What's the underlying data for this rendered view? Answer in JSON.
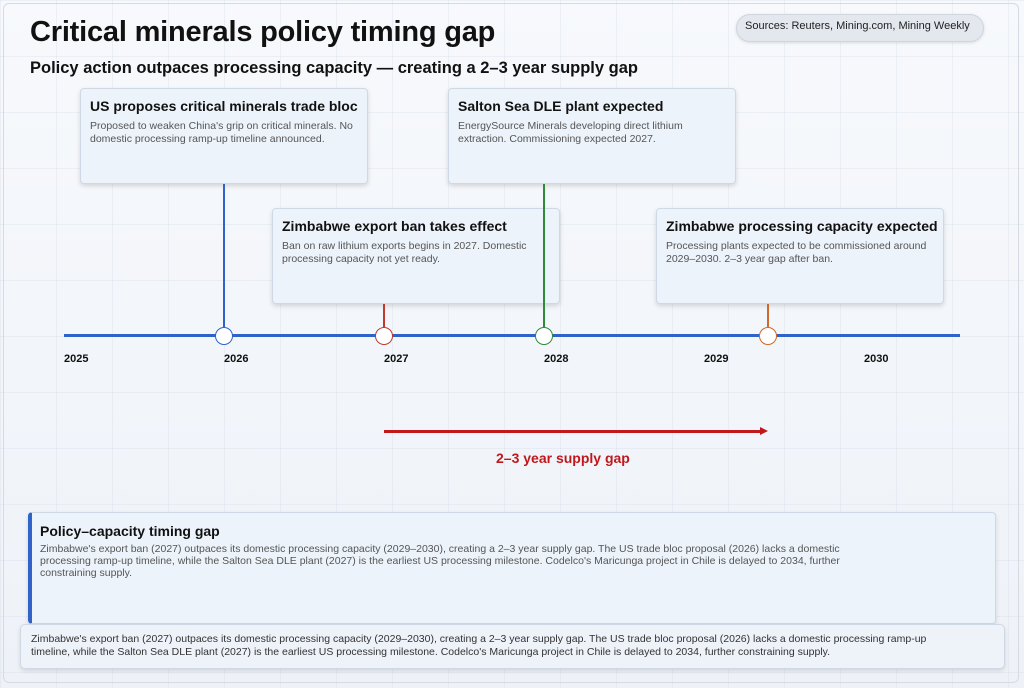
{
  "title": "Critical minerals policy timing gap",
  "sources": "Sources: Reuters, Mining.com, Mining Weekly",
  "subtitle": "Policy action outpaces processing capacity — creating a 2–3 year supply gap",
  "events": [
    {
      "title": "US proposes critical minerals trade bloc",
      "text": "Proposed to weaken China's grip on critical minerals. No domestic processing ramp-up timeline announced.",
      "color": "#2f63c9"
    },
    {
      "title": "Zimbabwe export ban takes effect",
      "text": "Ban on raw lithium exports begins in 2027. Domestic processing capacity not yet ready.",
      "color": "#c0392b"
    },
    {
      "title": "Salton Sea DLE plant expected",
      "text": "EnergySource Minerals developing direct lithium extraction. Commissioning expected 2027.",
      "color": "#2e8b3a"
    },
    {
      "title": "Zimbabwe processing capacity expected",
      "text": "Processing plants expected to be commissioned around 2029–2030. 2–3 year gap after ban.",
      "color": "#d0692a"
    }
  ],
  "years": [
    "2025",
    "2026",
    "2027",
    "2028",
    "2029",
    "2030"
  ],
  "gap_label": "2–3 year supply gap",
  "gap_color": "#c0181b",
  "axis_color": "#2f63c9",
  "summary": {
    "title": "Policy–capacity timing gap",
    "text": "Zimbabwe's export ban (2027) outpaces its domestic processing capacity (2029–2030), creating a 2–3 year supply gap. The US trade bloc proposal (2026) lacks a domestic processing ramp-up timeline, while the Salton Sea DLE plant (2027) is the earliest US processing milestone. Codelco's Maricunga project in Chile is delayed to 2034, further constraining supply."
  },
  "footer_text": "Zimbabwe's export ban (2027) outpaces its domestic processing capacity (2029–2030), creating a 2–3 year supply gap. The US trade bloc proposal (2026) lacks a domestic processing ramp-up timeline, while the Salton Sea DLE plant (2027) is the earliest US processing milestone. Codelco's Maricunga project in Chile is delayed to 2034, further constraining supply."
}
